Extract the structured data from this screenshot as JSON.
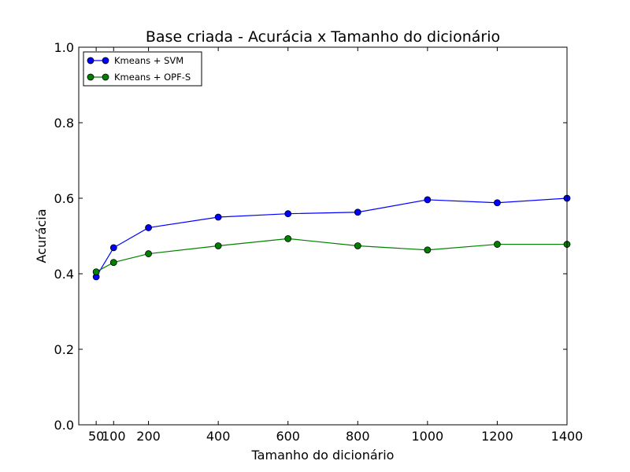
{
  "chart_data": {
    "type": "line",
    "title": "Base criada - Acurácia x Tamanho do dicionário",
    "xlabel": "Tamanho do dicionário",
    "ylabel": "Acurácia",
    "xlim": [
      0,
      1400
    ],
    "ylim": [
      0.0,
      1.0
    ],
    "xticks": [
      50,
      100,
      200,
      400,
      600,
      800,
      1000,
      1200,
      1400
    ],
    "xtick_labels": [
      "50",
      "100",
      "200",
      "400",
      "600",
      "800",
      "1000",
      "1200",
      "1400"
    ],
    "yticks": [
      0.0,
      0.2,
      0.4,
      0.6,
      0.8,
      1.0
    ],
    "ytick_labels": [
      "0.0",
      "0.2",
      "0.4",
      "0.6",
      "0.8",
      "1.0"
    ],
    "grid": false,
    "legend_position": "top-left",
    "x": [
      50,
      100,
      200,
      400,
      600,
      800,
      1000,
      1200,
      1400
    ],
    "series": [
      {
        "name": "Kmeans + SVM",
        "color": "#0000ff",
        "values": [
          0.392,
          0.469,
          0.522,
          0.55,
          0.559,
          0.563,
          0.596,
          0.588,
          0.6
        ]
      },
      {
        "name": "Kmeans + OPF-S",
        "color": "#008000",
        "values": [
          0.405,
          0.43,
          0.453,
          0.474,
          0.493,
          0.474,
          0.463,
          0.478,
          0.478
        ]
      }
    ]
  }
}
